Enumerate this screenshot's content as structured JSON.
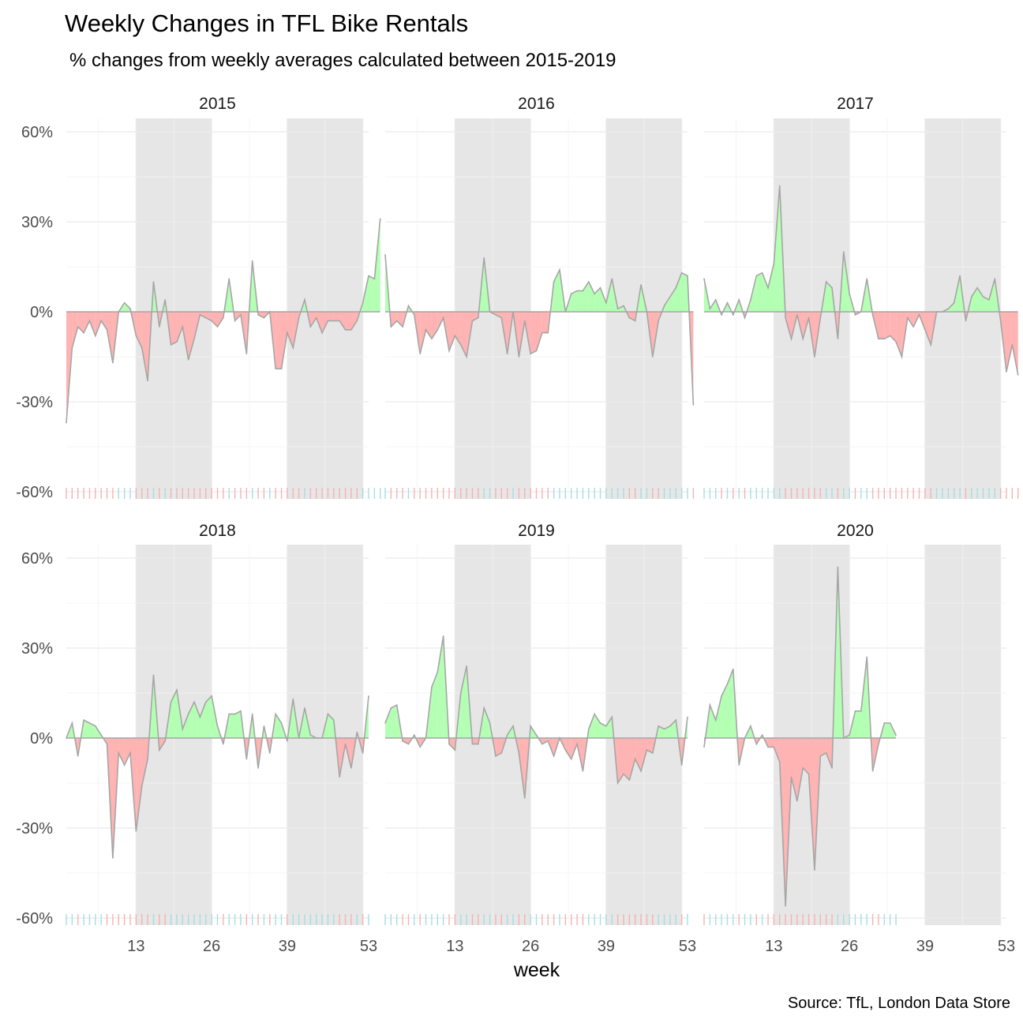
{
  "chart_data": {
    "type": "area",
    "title": "Weekly Changes in TFL Bike Rentals",
    "subtitle": "% changes from weekly averages calculated between 2015-2019",
    "xlabel": "week",
    "ylabel": "",
    "caption": "Source: TfL, London Data Store",
    "xlim": [
      1,
      53
    ],
    "ylim": [
      -60,
      60
    ],
    "x_ticks": [
      13,
      26,
      39,
      53
    ],
    "y_ticks": [
      -60,
      -30,
      0,
      30,
      60
    ],
    "y_tick_labels": [
      "-60%",
      "-30%",
      "0%",
      "30%",
      "60%"
    ],
    "shaded_week_ranges": [
      [
        13,
        26
      ],
      [
        39,
        52
      ]
    ],
    "positive_color": "#b3ffb3",
    "negative_color": "#ffb3b3",
    "outline_color": "#a6a6a6",
    "rug_positive_color": "#a8dde0",
    "rug_negative_color": "#f4b3b3",
    "panel_background": "#e6e6e6",
    "panels": [
      {
        "strip": "2015",
        "values": [
          -37,
          -12,
          -5,
          -7,
          -3,
          -8,
          -3,
          -6,
          -17,
          0,
          3,
          1,
          -8,
          -12,
          -23,
          10,
          -5,
          4,
          -11,
          -10,
          -5,
          -16,
          -9,
          -1,
          -2,
          -3,
          -5,
          -2,
          11,
          -3,
          -1,
          -14,
          17,
          -1,
          -2,
          0,
          -19,
          -19,
          -7,
          -12,
          -2,
          4,
          -5,
          -2,
          -7,
          -3,
          -3,
          -3,
          -6,
          -6,
          -3,
          3,
          12,
          11,
          31
        ]
      },
      {
        "strip": "2016",
        "values": [
          19,
          -5,
          -3,
          -5,
          2,
          -1,
          -14,
          -6,
          -9,
          -6,
          -2,
          -13,
          -8,
          -11,
          -15,
          -3,
          -2,
          18,
          0,
          -1,
          -2,
          -14,
          0,
          -15,
          -3,
          -14,
          -13,
          -7,
          -7,
          10,
          14,
          0,
          6,
          7,
          7,
          10,
          6,
          8,
          3,
          11,
          1,
          2,
          -2,
          -3,
          9,
          0,
          -15,
          -3,
          2,
          5,
          8,
          13,
          12,
          -31
        ]
      },
      {
        "strip": "2017",
        "values": [
          11,
          1,
          4,
          -1,
          3,
          -1,
          4,
          -2,
          4,
          12,
          13,
          8,
          16,
          42,
          -2,
          -9,
          -1,
          -9,
          -2,
          -15,
          -2,
          10,
          8,
          -9,
          20,
          6,
          -1,
          0,
          11,
          -1,
          -9,
          -9,
          -8,
          -10,
          -15,
          -2,
          -5,
          -1,
          -6,
          -11,
          0,
          0,
          1,
          3,
          12,
          -3,
          5,
          8,
          5,
          4,
          11,
          -3,
          -20,
          -11,
          -21
        ]
      },
      {
        "strip": "2018",
        "values": [
          0,
          5,
          -6,
          6,
          5,
          4,
          1,
          -2,
          -40,
          -5,
          -9,
          -5,
          -31,
          -16,
          -7,
          21,
          -4,
          -1,
          12,
          16,
          3,
          8,
          12,
          7,
          12,
          14,
          4,
          -2,
          8,
          8,
          9,
          -7,
          8,
          -10,
          4,
          -5,
          8,
          5,
          -1,
          13,
          0,
          10,
          1,
          0,
          0,
          8,
          6,
          -13,
          -2,
          -10,
          2,
          -5,
          14
        ]
      },
      {
        "strip": "2019",
        "values": [
          5,
          10,
          11,
          -1,
          -2,
          1,
          -3,
          0,
          17,
          22,
          34,
          -2,
          -4,
          15,
          24,
          -2,
          -2,
          10,
          5,
          -6,
          -5,
          1,
          4,
          -5,
          -20,
          4,
          1,
          -2,
          -1,
          -6,
          0,
          -4,
          -7,
          -2,
          -11,
          3,
          8,
          5,
          4,
          7,
          -15,
          -12,
          -14,
          -7,
          -11,
          -4,
          -5,
          4,
          3,
          4,
          6,
          -9,
          7
        ]
      },
      {
        "strip": "2020",
        "values": [
          -3,
          11,
          6,
          14,
          18,
          23,
          -9,
          0,
          4,
          -2,
          1,
          -3,
          -3,
          -8,
          -56,
          -13,
          -21,
          -10,
          -12,
          -44,
          -6,
          -5,
          -10,
          57,
          0,
          1,
          9,
          9,
          27,
          -11,
          -2,
          5,
          5,
          1
        ]
      }
    ]
  }
}
